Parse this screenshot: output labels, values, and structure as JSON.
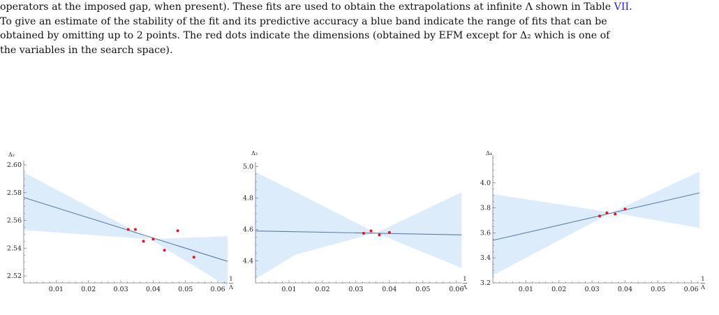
{
  "caption": {
    "line1_pre": "operators at the imposed gap, when present). These fits are used to obtain the extrapolations at infinite Λ shown in Table ",
    "line1_ref": "VII",
    "line1_post": ".",
    "line2": "To give an estimate of the stability of the fit and its predictive accuracy a blue band indicate the range of fits that can be",
    "line3": "obtained by omitting up to 2 points. The red dots indicate the dimensions (obtained by EFM except for Δ₂ which is one of",
    "line4": "the variables in the search space)."
  },
  "colors": {
    "band": "#dcecfb",
    "fit_line": "#5a7fa6",
    "points": "#e8121e",
    "axis": "#777777",
    "link": "#2222cc"
  },
  "chart_data": [
    {
      "type": "scatter",
      "ylabel": "Δ₂",
      "xlabel_num": "1",
      "xlabel_den": "Λ",
      "xlim": [
        0,
        0.063
      ],
      "ylim": [
        2.515,
        2.601
      ],
      "x_ticks": [
        0.01,
        0.02,
        0.03,
        0.04,
        0.05,
        0.06
      ],
      "x_tick_labels": [
        "0.01",
        "0.02",
        "0.03",
        "0.04",
        "0.05",
        "0.06"
      ],
      "y_ticks": [
        2.52,
        2.54,
        2.56,
        2.58,
        2.6
      ],
      "y_tick_labels": [
        "2.52",
        "2.54",
        "2.56",
        "2.58",
        "2.60"
      ],
      "points": [
        {
          "x": 0.0323,
          "y": 2.5535
        },
        {
          "x": 0.0345,
          "y": 2.5535
        },
        {
          "x": 0.037,
          "y": 2.545
        },
        {
          "x": 0.04,
          "y": 2.5465
        },
        {
          "x": 0.0435,
          "y": 2.5385
        },
        {
          "x": 0.0476,
          "y": 2.5525
        },
        {
          "x": 0.0526,
          "y": 2.5335
        }
      ],
      "fit": {
        "x": [
          0,
          0.063
        ],
        "y": [
          2.5765,
          2.5305
        ]
      },
      "band_upper": {
        "x": [
          0,
          0.039,
          0.063
        ],
        "y": [
          2.5945,
          2.5465,
          2.5485
        ]
      },
      "band_lower": {
        "x": [
          0,
          0.039,
          0.063
        ],
        "y": [
          2.553,
          2.5465,
          2.5125
        ]
      }
    },
    {
      "type": "scatter",
      "ylabel": "Δ₃",
      "xlabel_num": "1",
      "xlabel_den": "Λ",
      "xlim": [
        0,
        0.0615
      ],
      "ylim": [
        4.26,
        5.01
      ],
      "x_ticks": [
        0.01,
        0.02,
        0.03,
        0.04,
        0.05,
        0.06
      ],
      "x_tick_labels": [
        "0.01",
        "0.02",
        "0.03",
        "0.04",
        "0.05",
        "0.06"
      ],
      "y_ticks": [
        4.4,
        4.6,
        4.8,
        5.0
      ],
      "y_tick_labels": [
        "4.4",
        "4.6",
        "4.8",
        "5.0"
      ],
      "points": [
        {
          "x": 0.0323,
          "y": 4.575
        },
        {
          "x": 0.0345,
          "y": 4.59
        },
        {
          "x": 0.037,
          "y": 4.565
        },
        {
          "x": 0.04,
          "y": 4.58
        }
      ],
      "fit": {
        "x": [
          0,
          0.0615
        ],
        "y": [
          4.59,
          4.565
        ]
      },
      "band_upper": {
        "x": [
          0,
          0.036,
          0.0615
        ],
        "y": [
          4.965,
          4.578,
          4.835
        ]
      },
      "band_lower": {
        "x": [
          0,
          0.012,
          0.036,
          0.0615
        ],
        "y": [
          4.285,
          4.44,
          4.578,
          4.355
        ]
      }
    },
    {
      "type": "scatter",
      "ylabel": "Δ₄",
      "xlabel_num": "1",
      "xlabel_den": "Λ",
      "xlim": [
        0,
        0.0625
      ],
      "ylim": [
        3.2,
        4.2
      ],
      "x_ticks": [
        0.01,
        0.02,
        0.03,
        0.04,
        0.05,
        0.06
      ],
      "x_tick_labels": [
        "0.01",
        "0.02",
        "0.03",
        "0.04",
        "0.05",
        "0.06"
      ],
      "y_ticks": [
        3.2,
        3.4,
        3.6,
        3.8,
        4.0
      ],
      "y_tick_labels": [
        "3.2",
        "3.4",
        "3.6",
        "3.8",
        "4.0"
      ],
      "points": [
        {
          "x": 0.0323,
          "y": 3.735
        },
        {
          "x": 0.0345,
          "y": 3.76
        },
        {
          "x": 0.037,
          "y": 3.75
        },
        {
          "x": 0.04,
          "y": 3.79
        }
      ],
      "fit": {
        "x": [
          0,
          0.0625
        ],
        "y": [
          3.54,
          3.92
        ]
      },
      "band_upper": {
        "x": [
          0,
          0.036,
          0.0625
        ],
        "y": [
          3.91,
          3.763,
          4.09
        ]
      },
      "band_lower": {
        "x": [
          0,
          0.036,
          0.0625
        ],
        "y": [
          3.26,
          3.763,
          3.64
        ]
      }
    }
  ]
}
